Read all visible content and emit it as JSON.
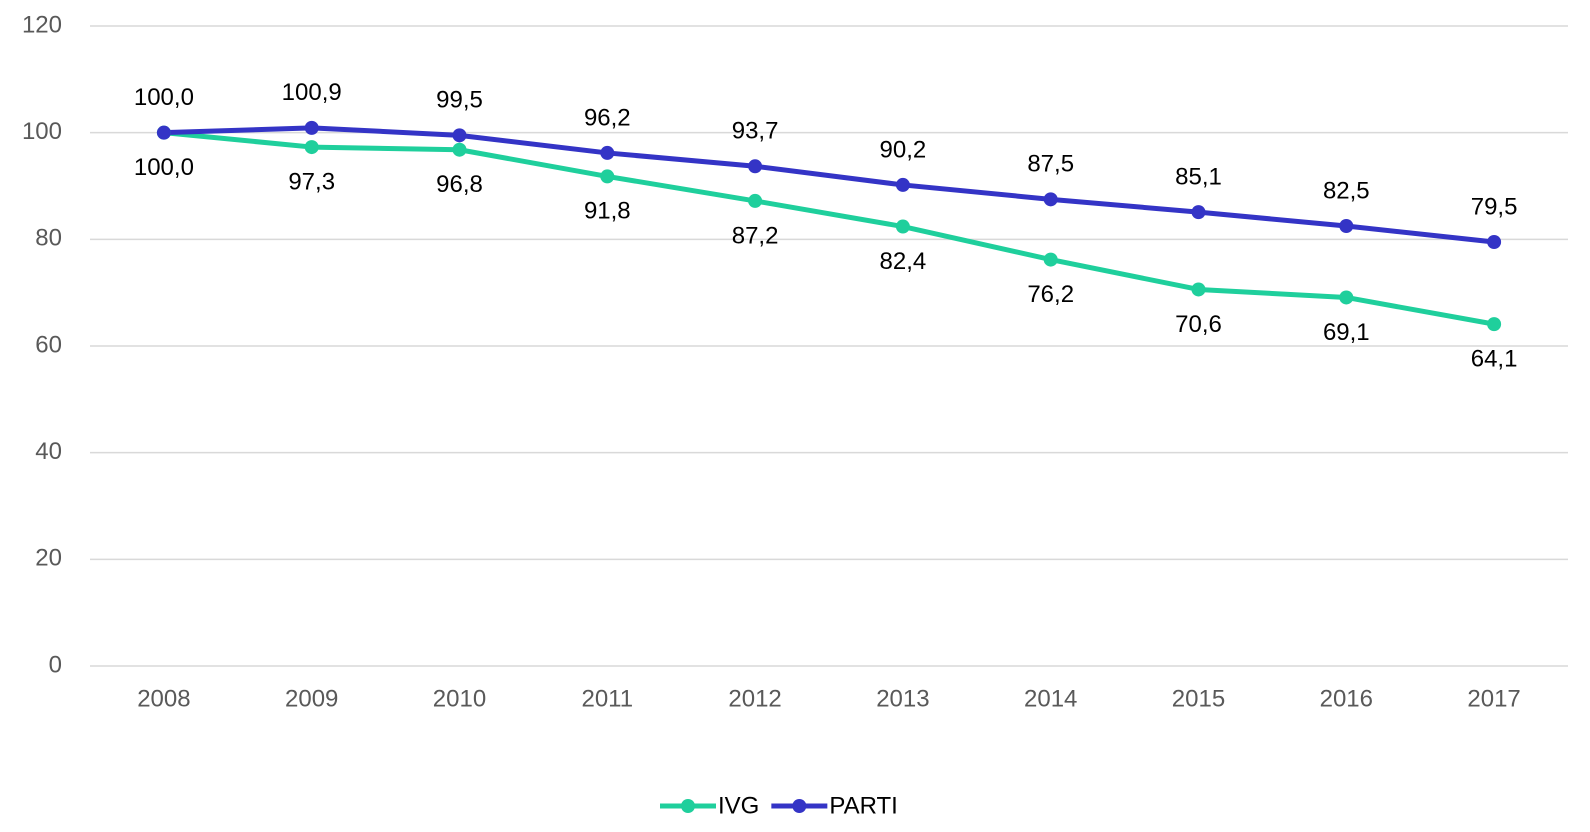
{
  "chart_data": {
    "type": "line",
    "categories": [
      "2008",
      "2009",
      "2010",
      "2011",
      "2012",
      "2013",
      "2014",
      "2015",
      "2016",
      "2017"
    ],
    "series": [
      {
        "name": "IVG",
        "color": "#1fcf9c",
        "values": [
          100,
          97.3,
          96.8,
          91.8,
          87.2,
          82.4,
          76.2,
          70.6,
          69.1,
          64.1
        ],
        "value_labels": [
          "100,0",
          "97,3",
          "96,8",
          "91,8",
          "87,2",
          "82,4",
          "76,2",
          "70,6",
          "69,1",
          "64,1"
        ]
      },
      {
        "name": "PARTI",
        "color": "#3434c6",
        "values": [
          100,
          100.9,
          99.5,
          96.2,
          93.7,
          90.2,
          87.5,
          85.1,
          82.5,
          79.5
        ],
        "value_labels": [
          "100,0",
          "100,9",
          "99,5",
          "96,2",
          "93,7",
          "90,2",
          "87,5",
          "85,1",
          "82,5",
          "79,5"
        ]
      }
    ],
    "ylim": [
      0,
      120
    ],
    "yticks": [
      0,
      20,
      40,
      60,
      80,
      100,
      120
    ],
    "grid": true,
    "legend": "bottom"
  }
}
